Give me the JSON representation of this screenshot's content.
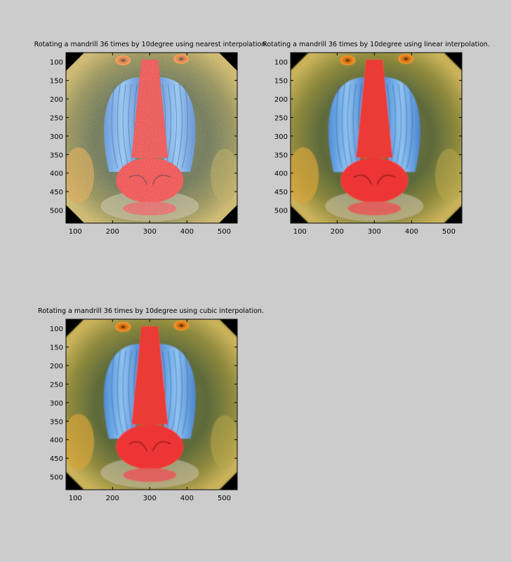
{
  "figure": {
    "background": "#cccccc"
  },
  "chart_data": [
    {
      "type": "image",
      "title": "Rotating a mandrill 36 times by 10degree using nearest interpolation.",
      "xlim": [
        75,
        535
      ],
      "ylim": [
        75,
        535
      ],
      "y_reversed": true,
      "xticks": [
        100,
        200,
        300,
        400,
        500
      ],
      "yticks": [
        100,
        150,
        200,
        250,
        300,
        350,
        400,
        450,
        500
      ],
      "interpolation": "nearest"
    },
    {
      "type": "image",
      "title": "Rotating a mandrill 36 times by 10degree using linear interpolation.",
      "xlim": [
        75,
        535
      ],
      "ylim": [
        75,
        535
      ],
      "y_reversed": true,
      "xticks": [
        100,
        200,
        300,
        400,
        500
      ],
      "yticks": [
        100,
        150,
        200,
        250,
        300,
        350,
        400,
        450,
        500
      ],
      "interpolation": "linear"
    },
    {
      "type": "image",
      "title": "Rotating a mandrill 36 times by 10degree using cubic interpolation.",
      "xlim": [
        75,
        535
      ],
      "ylim": [
        75,
        535
      ],
      "y_reversed": true,
      "xticks": [
        100,
        200,
        300,
        400,
        500
      ],
      "yticks": [
        100,
        150,
        200,
        250,
        300,
        350,
        400,
        450,
        500
      ],
      "interpolation": "cubic"
    }
  ]
}
